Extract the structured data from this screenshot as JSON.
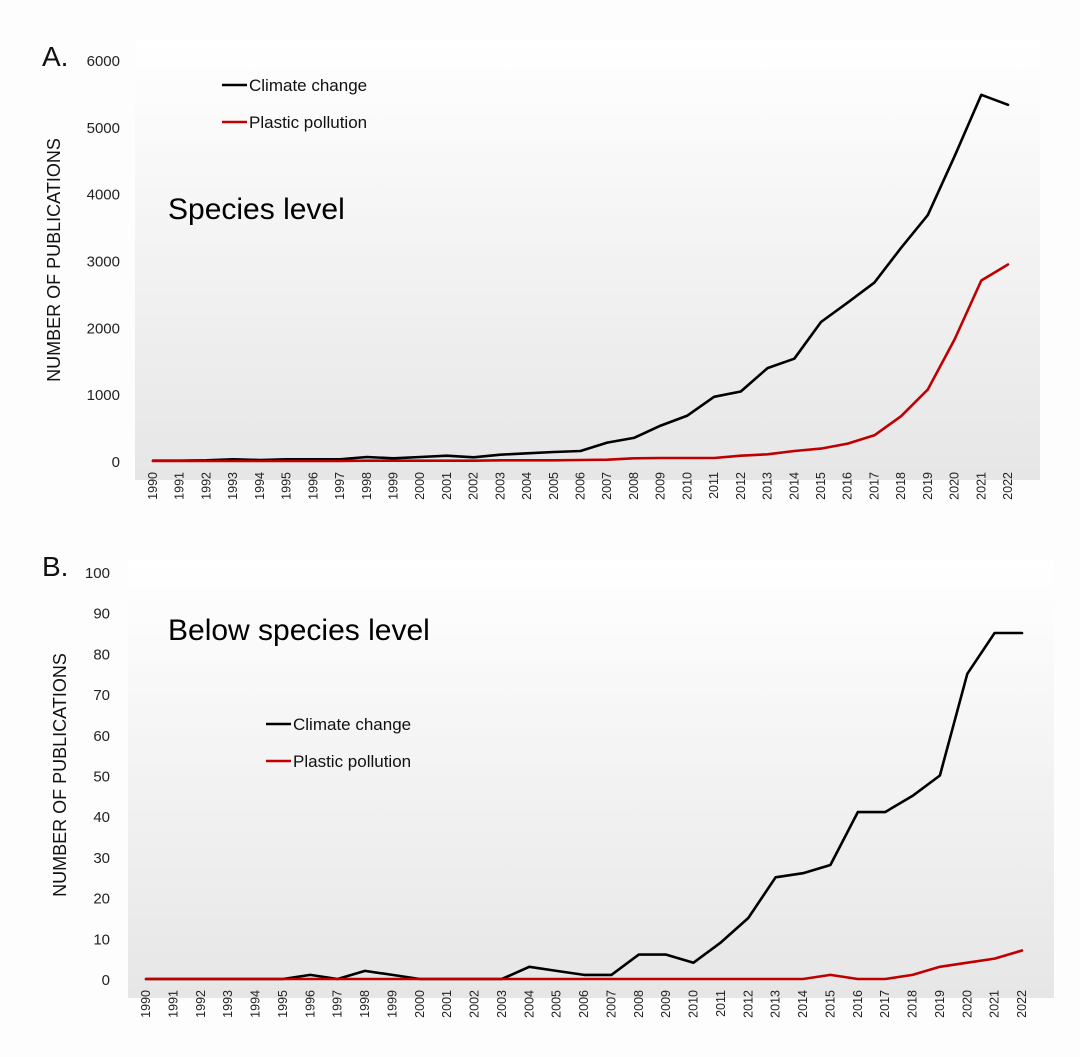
{
  "chart_data": [
    {
      "type": "line",
      "panel_label": "A.",
      "annotation": "Species level",
      "xlabel": "",
      "ylabel": "NUMBER OF PUBLICATIONS",
      "ylim": [
        0,
        6000
      ],
      "yticks": [
        0,
        1000,
        2000,
        3000,
        4000,
        5000,
        6000
      ],
      "x": [
        "1990",
        "1991",
        "1992",
        "1993",
        "1994",
        "1995",
        "1996",
        "1997",
        "1998",
        "1999",
        "2000",
        "2001",
        "2002",
        "2003",
        "2004",
        "2005",
        "2006",
        "2007",
        "2008",
        "2009",
        "2010",
        "2011",
        "2012",
        "2013",
        "2014",
        "2015",
        "2016",
        "2017",
        "2018",
        "2019",
        "2020",
        "2021",
        "2022"
      ],
      "legend_position": "top-left",
      "grid": false,
      "series": [
        {
          "name": "Climate change",
          "color": "#000000",
          "values": [
            5,
            5,
            10,
            25,
            15,
            25,
            25,
            25,
            60,
            40,
            60,
            80,
            55,
            95,
            115,
            135,
            150,
            275,
            345,
            530,
            680,
            960,
            1040,
            1390,
            1530,
            2080,
            2370,
            2670,
            3190,
            3680,
            4560,
            5480,
            5330
          ]
        },
        {
          "name": "Plastic pollution",
          "color": "#c00000",
          "values": [
            0,
            0,
            0,
            0,
            0,
            0,
            0,
            0,
            5,
            5,
            5,
            5,
            5,
            10,
            10,
            10,
            15,
            20,
            40,
            45,
            45,
            45,
            80,
            100,
            150,
            185,
            260,
            385,
            670,
            1070,
            1820,
            2700,
            2940
          ]
        }
      ]
    },
    {
      "type": "line",
      "panel_label": "B.",
      "annotation": "Below species level",
      "xlabel": "",
      "ylabel": "NUMBER OF PUBLICATIONS",
      "ylim": [
        0,
        100
      ],
      "yticks": [
        0,
        10,
        20,
        30,
        40,
        50,
        60,
        70,
        80,
        90,
        100
      ],
      "x": [
        "1990",
        "1991",
        "1992",
        "1993",
        "1994",
        "1995",
        "1996",
        "1997",
        "1998",
        "1999",
        "2000",
        "2001",
        "2002",
        "2003",
        "2004",
        "2005",
        "2006",
        "2007",
        "2008",
        "2009",
        "2010",
        "2011",
        "2012",
        "2013",
        "2014",
        "2015",
        "2016",
        "2017",
        "2018",
        "2019",
        "2020",
        "2021",
        "2022"
      ],
      "legend_position": "center-left",
      "grid": false,
      "series": [
        {
          "name": "Climate change",
          "color": "#000000",
          "values": [
            0,
            0,
            0,
            0,
            0,
            0,
            1,
            0,
            2,
            1,
            0,
            0,
            0,
            0,
            3,
            2,
            1,
            1,
            6,
            6,
            4,
            9,
            15,
            25,
            26,
            28,
            41,
            41,
            45,
            50,
            75,
            85,
            85
          ]
        },
        {
          "name": "Plastic pollution",
          "color": "#c00000",
          "values": [
            0,
            0,
            0,
            0,
            0,
            0,
            0,
            0,
            0,
            0,
            0,
            0,
            0,
            0,
            0,
            0,
            0,
            0,
            0,
            0,
            0,
            0,
            0,
            0,
            0,
            1,
            0,
            0,
            1,
            3,
            4,
            5,
            7
          ]
        }
      ]
    }
  ]
}
